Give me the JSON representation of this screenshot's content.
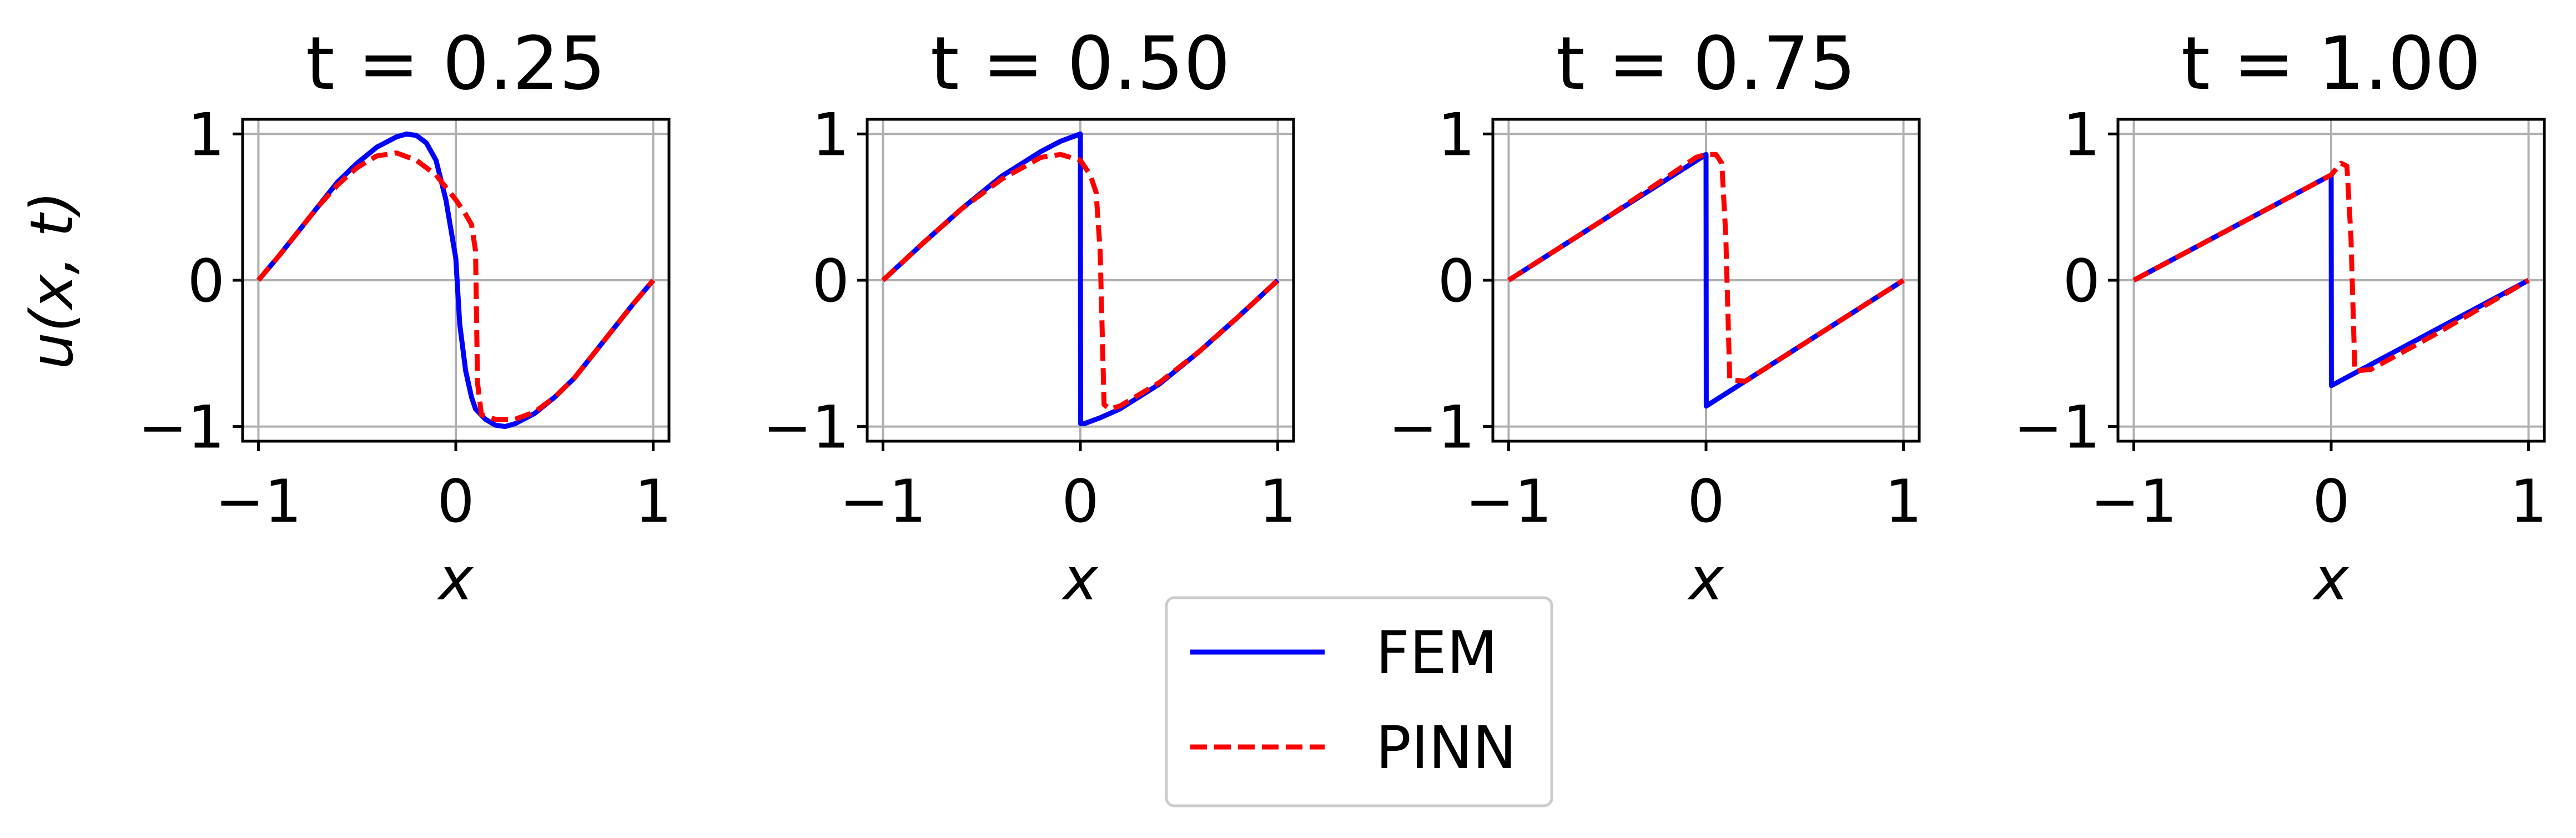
{
  "chart_data": [
    {
      "type": "line",
      "title": "t = 0.25",
      "xlabel": "x",
      "ylabel": "u(x, t)",
      "xlim": [
        -1.08,
        1.08
      ],
      "ylim": [
        -1.1,
        1.1
      ],
      "xticks": [
        -1,
        0,
        1
      ],
      "xtick_labels": [
        "−1",
        "0",
        "1"
      ],
      "yticks": [
        -1,
        0,
        1
      ],
      "ytick_labels": [
        "−1",
        "0",
        "1"
      ],
      "grid": true,
      "series": [
        {
          "name": "FEM",
          "color": "#0000ff",
          "dash": "solid",
          "x": [
            -1,
            -0.9,
            -0.8,
            -0.7,
            -0.6,
            -0.5,
            -0.4,
            -0.3,
            -0.25,
            -0.2,
            -0.15,
            -0.1,
            -0.05,
            0,
            0.02,
            0.05,
            0.08,
            0.1,
            0.15,
            0.2,
            0.25,
            0.3,
            0.4,
            0.5,
            0.6,
            0.7,
            0.8,
            0.9,
            1
          ],
          "y": [
            0,
            0.16,
            0.33,
            0.5,
            0.67,
            0.8,
            0.91,
            0.98,
            1.0,
            0.99,
            0.94,
            0.82,
            0.55,
            0.15,
            -0.3,
            -0.62,
            -0.8,
            -0.88,
            -0.95,
            -0.99,
            -1.0,
            -0.98,
            -0.91,
            -0.8,
            -0.67,
            -0.5,
            -0.33,
            -0.16,
            0
          ]
        },
        {
          "name": "PINN",
          "color": "#ff0000",
          "dash": "dashed",
          "x": [
            -1,
            -0.9,
            -0.8,
            -0.7,
            -0.6,
            -0.5,
            -0.4,
            -0.3,
            -0.2,
            -0.1,
            0,
            0.05,
            0.08,
            0.1,
            0.11,
            0.13,
            0.2,
            0.3,
            0.4,
            0.5,
            0.6,
            0.7,
            0.8,
            0.9,
            1
          ],
          "y": [
            0,
            0.16,
            0.33,
            0.5,
            0.65,
            0.77,
            0.85,
            0.87,
            0.82,
            0.72,
            0.55,
            0.45,
            0.38,
            0.2,
            -0.7,
            -0.92,
            -0.95,
            -0.95,
            -0.9,
            -0.8,
            -0.67,
            -0.5,
            -0.33,
            -0.16,
            0
          ]
        }
      ]
    },
    {
      "type": "line",
      "title": "t = 0.50",
      "xlabel": "x",
      "ylabel": "",
      "xlim": [
        -1.08,
        1.08
      ],
      "ylim": [
        -1.1,
        1.1
      ],
      "xticks": [
        -1,
        0,
        1
      ],
      "xtick_labels": [
        "−1",
        "0",
        "1"
      ],
      "yticks": [
        -1,
        0,
        1
      ],
      "ytick_labels": [
        "−1",
        "0",
        "1"
      ],
      "grid": true,
      "series": [
        {
          "name": "FEM",
          "color": "#0000ff",
          "dash": "solid",
          "x": [
            -1,
            -0.8,
            -0.6,
            -0.4,
            -0.2,
            -0.1,
            0,
            0.001,
            0.02,
            0.1,
            0.2,
            0.4,
            0.6,
            0.8,
            1
          ],
          "y": [
            0,
            0.25,
            0.49,
            0.71,
            0.88,
            0.95,
            1.0,
            -0.98,
            -0.98,
            -0.94,
            -0.88,
            -0.71,
            -0.49,
            -0.25,
            0
          ]
        },
        {
          "name": "PINN",
          "color": "#ff0000",
          "dash": "dashed",
          "x": [
            -1,
            -0.8,
            -0.6,
            -0.4,
            -0.2,
            -0.1,
            0,
            0.05,
            0.08,
            0.1,
            0.12,
            0.15,
            0.2,
            0.4,
            0.6,
            0.8,
            1
          ],
          "y": [
            0,
            0.25,
            0.49,
            0.69,
            0.84,
            0.86,
            0.82,
            0.72,
            0.6,
            0.2,
            -0.85,
            -0.88,
            -0.86,
            -0.7,
            -0.49,
            -0.25,
            0
          ]
        }
      ]
    },
    {
      "type": "line",
      "title": "t = 0.75",
      "xlabel": "x",
      "ylabel": "",
      "xlim": [
        -1.08,
        1.08
      ],
      "ylim": [
        -1.1,
        1.1
      ],
      "xticks": [
        -1,
        0,
        1
      ],
      "xtick_labels": [
        "−1",
        "0",
        "1"
      ],
      "yticks": [
        -1,
        0,
        1
      ],
      "ytick_labels": [
        "−1",
        "0",
        "1"
      ],
      "grid": true,
      "series": [
        {
          "name": "FEM",
          "color": "#0000ff",
          "dash": "solid",
          "x": [
            -1,
            -0.5,
            0,
            0.001,
            0.5,
            1
          ],
          "y": [
            0,
            0.43,
            0.86,
            -0.86,
            -0.43,
            0
          ]
        },
        {
          "name": "PINN",
          "color": "#ff0000",
          "dash": "dashed",
          "x": [
            -1,
            -0.5,
            -0.05,
            0,
            0.05,
            0.08,
            0.1,
            0.12,
            0.2,
            0.5,
            1
          ],
          "y": [
            0,
            0.43,
            0.84,
            0.86,
            0.86,
            0.8,
            0.3,
            -0.68,
            -0.69,
            -0.43,
            0
          ]
        }
      ]
    },
    {
      "type": "line",
      "title": "t = 1.00",
      "xlabel": "x",
      "ylabel": "",
      "xlim": [
        -1.08,
        1.08
      ],
      "ylim": [
        -1.1,
        1.1
      ],
      "xticks": [
        -1,
        0,
        1
      ],
      "xtick_labels": [
        "−1",
        "0",
        "1"
      ],
      "yticks": [
        -1,
        0,
        1
      ],
      "ytick_labels": [
        "−1",
        "0",
        "1"
      ],
      "grid": true,
      "series": [
        {
          "name": "FEM",
          "color": "#0000ff",
          "dash": "solid",
          "x": [
            -1,
            -0.5,
            0,
            0.001,
            0.5,
            1
          ],
          "y": [
            0,
            0.36,
            0.72,
            -0.72,
            -0.36,
            0
          ]
        },
        {
          "name": "PINN",
          "color": "#ff0000",
          "dash": "dashed",
          "x": [
            -1,
            -0.5,
            0,
            0.05,
            0.08,
            0.1,
            0.12,
            0.2,
            0.5,
            1
          ],
          "y": [
            0,
            0.36,
            0.72,
            0.8,
            0.78,
            0.3,
            -0.62,
            -0.61,
            -0.39,
            0
          ]
        }
      ]
    }
  ],
  "legend": {
    "placement": "bottom-center",
    "entries": [
      {
        "label": "FEM",
        "color": "#0000ff",
        "dash": "solid"
      },
      {
        "label": "PINN",
        "color": "#ff0000",
        "dash": "dashed"
      }
    ]
  }
}
